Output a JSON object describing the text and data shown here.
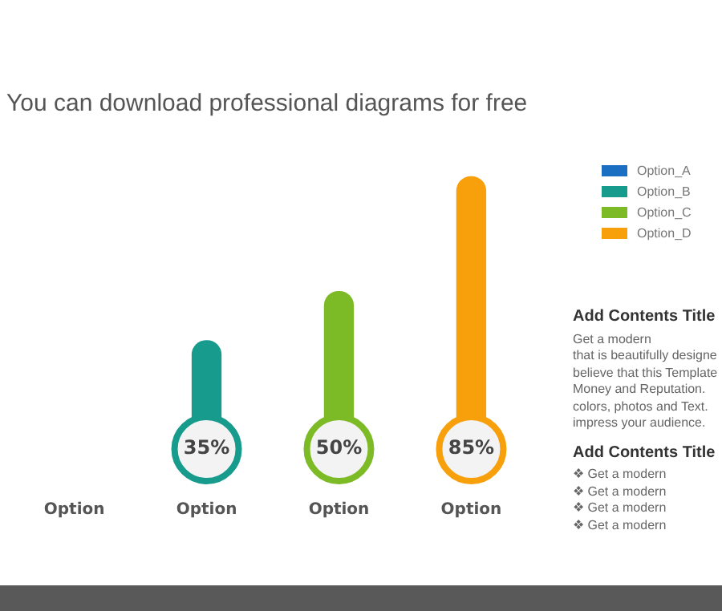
{
  "chart_data": {
    "type": "bar",
    "subtitle": "You can download professional diagrams for free",
    "categories": [
      "Option",
      "Option",
      "Option",
      "Option"
    ],
    "series": [
      {
        "name": "Option_A",
        "color": "#1b6fc2",
        "values": [
          null,
          null,
          null,
          null
        ]
      },
      {
        "name": "Option_B",
        "color": "#169b8c",
        "values": [
          null,
          35,
          null,
          null
        ],
        "value_labels": [
          null,
          "35%",
          null,
          null
        ]
      },
      {
        "name": "Option_C",
        "color": "#7cbb26",
        "values": [
          null,
          null,
          50,
          null
        ],
        "value_labels": [
          null,
          null,
          "50%",
          null
        ]
      },
      {
        "name": "Option_D",
        "color": "#f7a00c",
        "values": [
          null,
          null,
          null,
          85
        ],
        "value_labels": [
          null,
          null,
          null,
          "85%"
        ]
      }
    ],
    "tick_labels": "x",
    "grid": false,
    "legend": "right",
    "annotations": [
      "Add Contents Title",
      "Get a modern",
      "that is beautifully designe",
      "believe that this Template",
      "Money and Reputation.",
      "colors, photos and Text.",
      "impress your audience.",
      "Add Contents Title",
      "❖ Get a modern",
      "❖ Get a modern",
      "❖ Get a modern",
      "❖ Get a modern"
    ]
  }
}
